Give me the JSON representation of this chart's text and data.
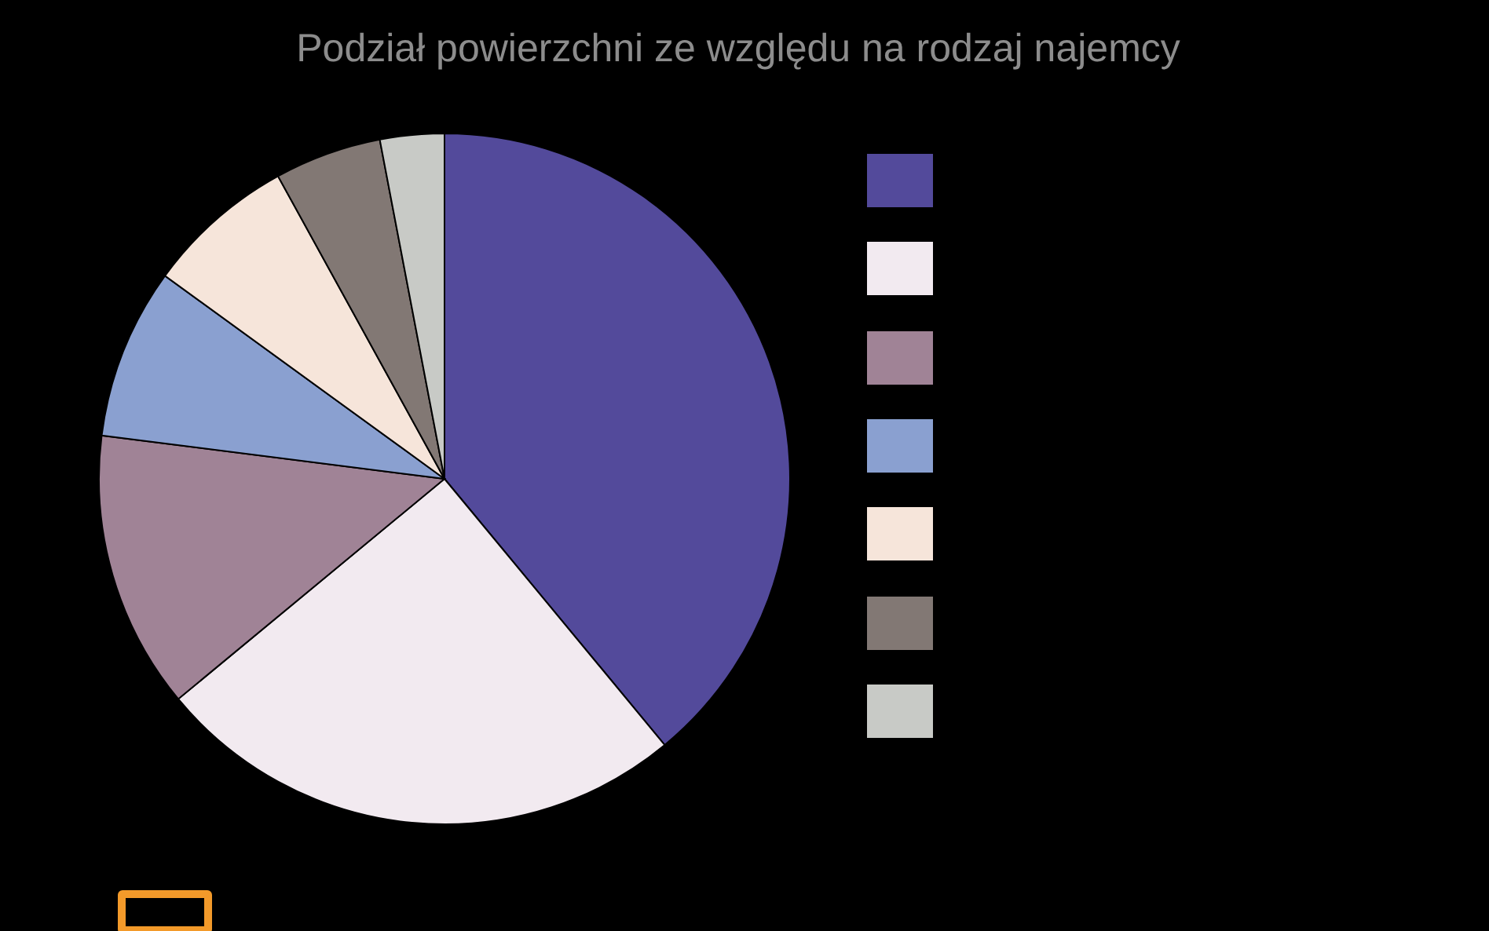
{
  "chart_data": {
    "type": "pie",
    "title": "Podział powierzchni ze względu na rodzaj najemcy",
    "categories": [
      null,
      null,
      null,
      null,
      null,
      null,
      null
    ],
    "values": [
      39,
      25,
      13,
      8,
      7,
      5,
      3
    ],
    "colors": [
      "#534a9b",
      "#f2eaf0",
      "#a08396",
      "#8aa0d0",
      "#f6e5da",
      "#827874",
      "#c8cac6"
    ]
  }
}
